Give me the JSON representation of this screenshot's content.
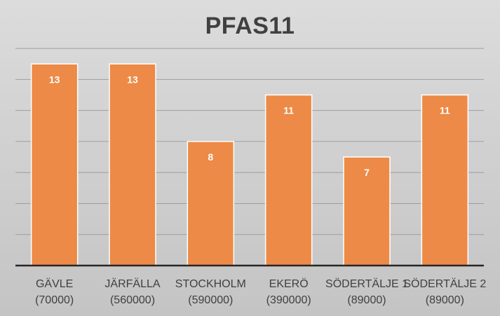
{
  "chart_data": {
    "type": "bar",
    "title": "PFAS11",
    "categories": [
      [
        "GÄVLE",
        "(70000)"
      ],
      [
        "JÄRFÄLLA",
        "(560000)"
      ],
      [
        "STOCKHOLM",
        "(590000)"
      ],
      [
        "EKERÖ",
        "(390000)"
      ],
      [
        "SÖDERTÄLJE 1",
        "(89000)"
      ],
      [
        "SÖDERTÄLJE 2",
        "(89000)"
      ]
    ],
    "values": [
      13,
      13,
      8,
      11,
      7,
      11
    ],
    "data_labels": [
      "13",
      "13",
      "8",
      "11",
      "7",
      "11"
    ],
    "xlabel": "",
    "ylabel": "",
    "ylim": [
      0,
      15
    ],
    "grid": true,
    "legend": "none",
    "colors": {
      "bar_fill": "#ed8a47",
      "bar_stroke": "#ffffff",
      "gridline": "#9e9e9e",
      "axis": "#262626"
    }
  }
}
